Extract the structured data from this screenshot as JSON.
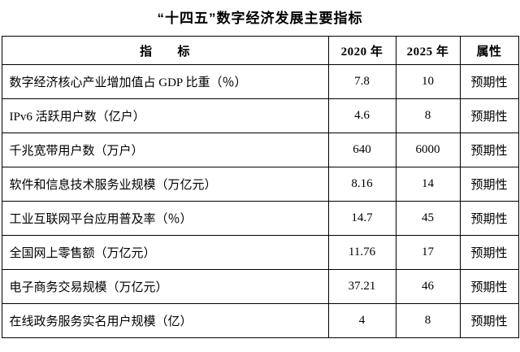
{
  "title": "“十四五”数字经济发展主要指标",
  "table": {
    "headers": {
      "indicator": "指　　标",
      "year2020": "2020 年",
      "year2025": "2025 年",
      "attribute": "属性"
    },
    "rows": [
      [
        "数字经济核心产业增加值占 GDP 比重（％）",
        "7.8",
        "10",
        "预期性"
      ],
      [
        "IPv6 活跃用户数（亿户）",
        "4.6",
        "8",
        "预期性"
      ],
      [
        "千兆宽带用户数（万户）",
        "640",
        "6000",
        "预期性"
      ],
      [
        "软件和信息技术服务业规模（万亿元）",
        "8.16",
        "14",
        "预期性"
      ],
      [
        "工业互联网平台应用普及率（％）",
        "14.7",
        "45",
        "预期性"
      ],
      [
        "全国网上零售额（万亿元）",
        "11.76",
        "17",
        "预期性"
      ],
      [
        "电子商务交易规模（万亿元）",
        "37.21",
        "46",
        "预期性"
      ],
      [
        "在线政务服务实名用户规模（亿）",
        "4",
        "8",
        "预期性"
      ]
    ]
  }
}
